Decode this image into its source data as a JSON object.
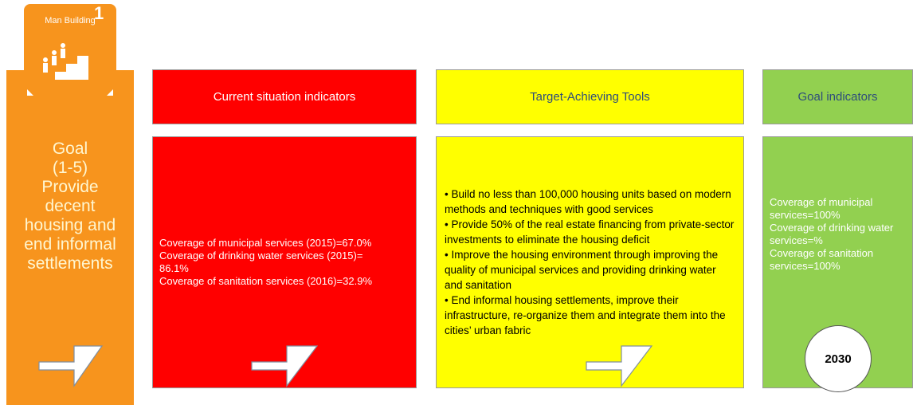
{
  "goal": {
    "tile_name": "Man Building",
    "tile_number": "1",
    "lines": [
      "Goal",
      "(1-5)",
      "Provide",
      "decent",
      "housing and",
      "end informal",
      "settlements"
    ]
  },
  "current": {
    "title": "Current situation indicators",
    "items": [
      "Coverage of municipal services (2015)=67.0%",
      "Coverage of drinking water services (2015)=",
      "86.1%",
      "Coverage of sanitation services (2016)=32.9%"
    ]
  },
  "tools": {
    "title": "Target-Achieving Tools",
    "items": [
      "• Build no less than 100,000 housing units based on modern methods and techniques with good services",
      "• Provide 50% of the real estate financing from private-sector investments to eliminate the housing deficit",
      "• Improve the housing environment through improving the quality of municipal services and providing drinking water and sanitation",
      "• End informal housing settlements, improve their infrastructure, re-organize them and integrate them into the cities’ urban fabric"
    ]
  },
  "goals": {
    "title": "Goal indicators",
    "items": [
      "Coverage of municipal services=100%",
      "Coverage of drinking water services=%",
      "Coverage of sanitation services=100%"
    ],
    "year": "2030"
  }
}
